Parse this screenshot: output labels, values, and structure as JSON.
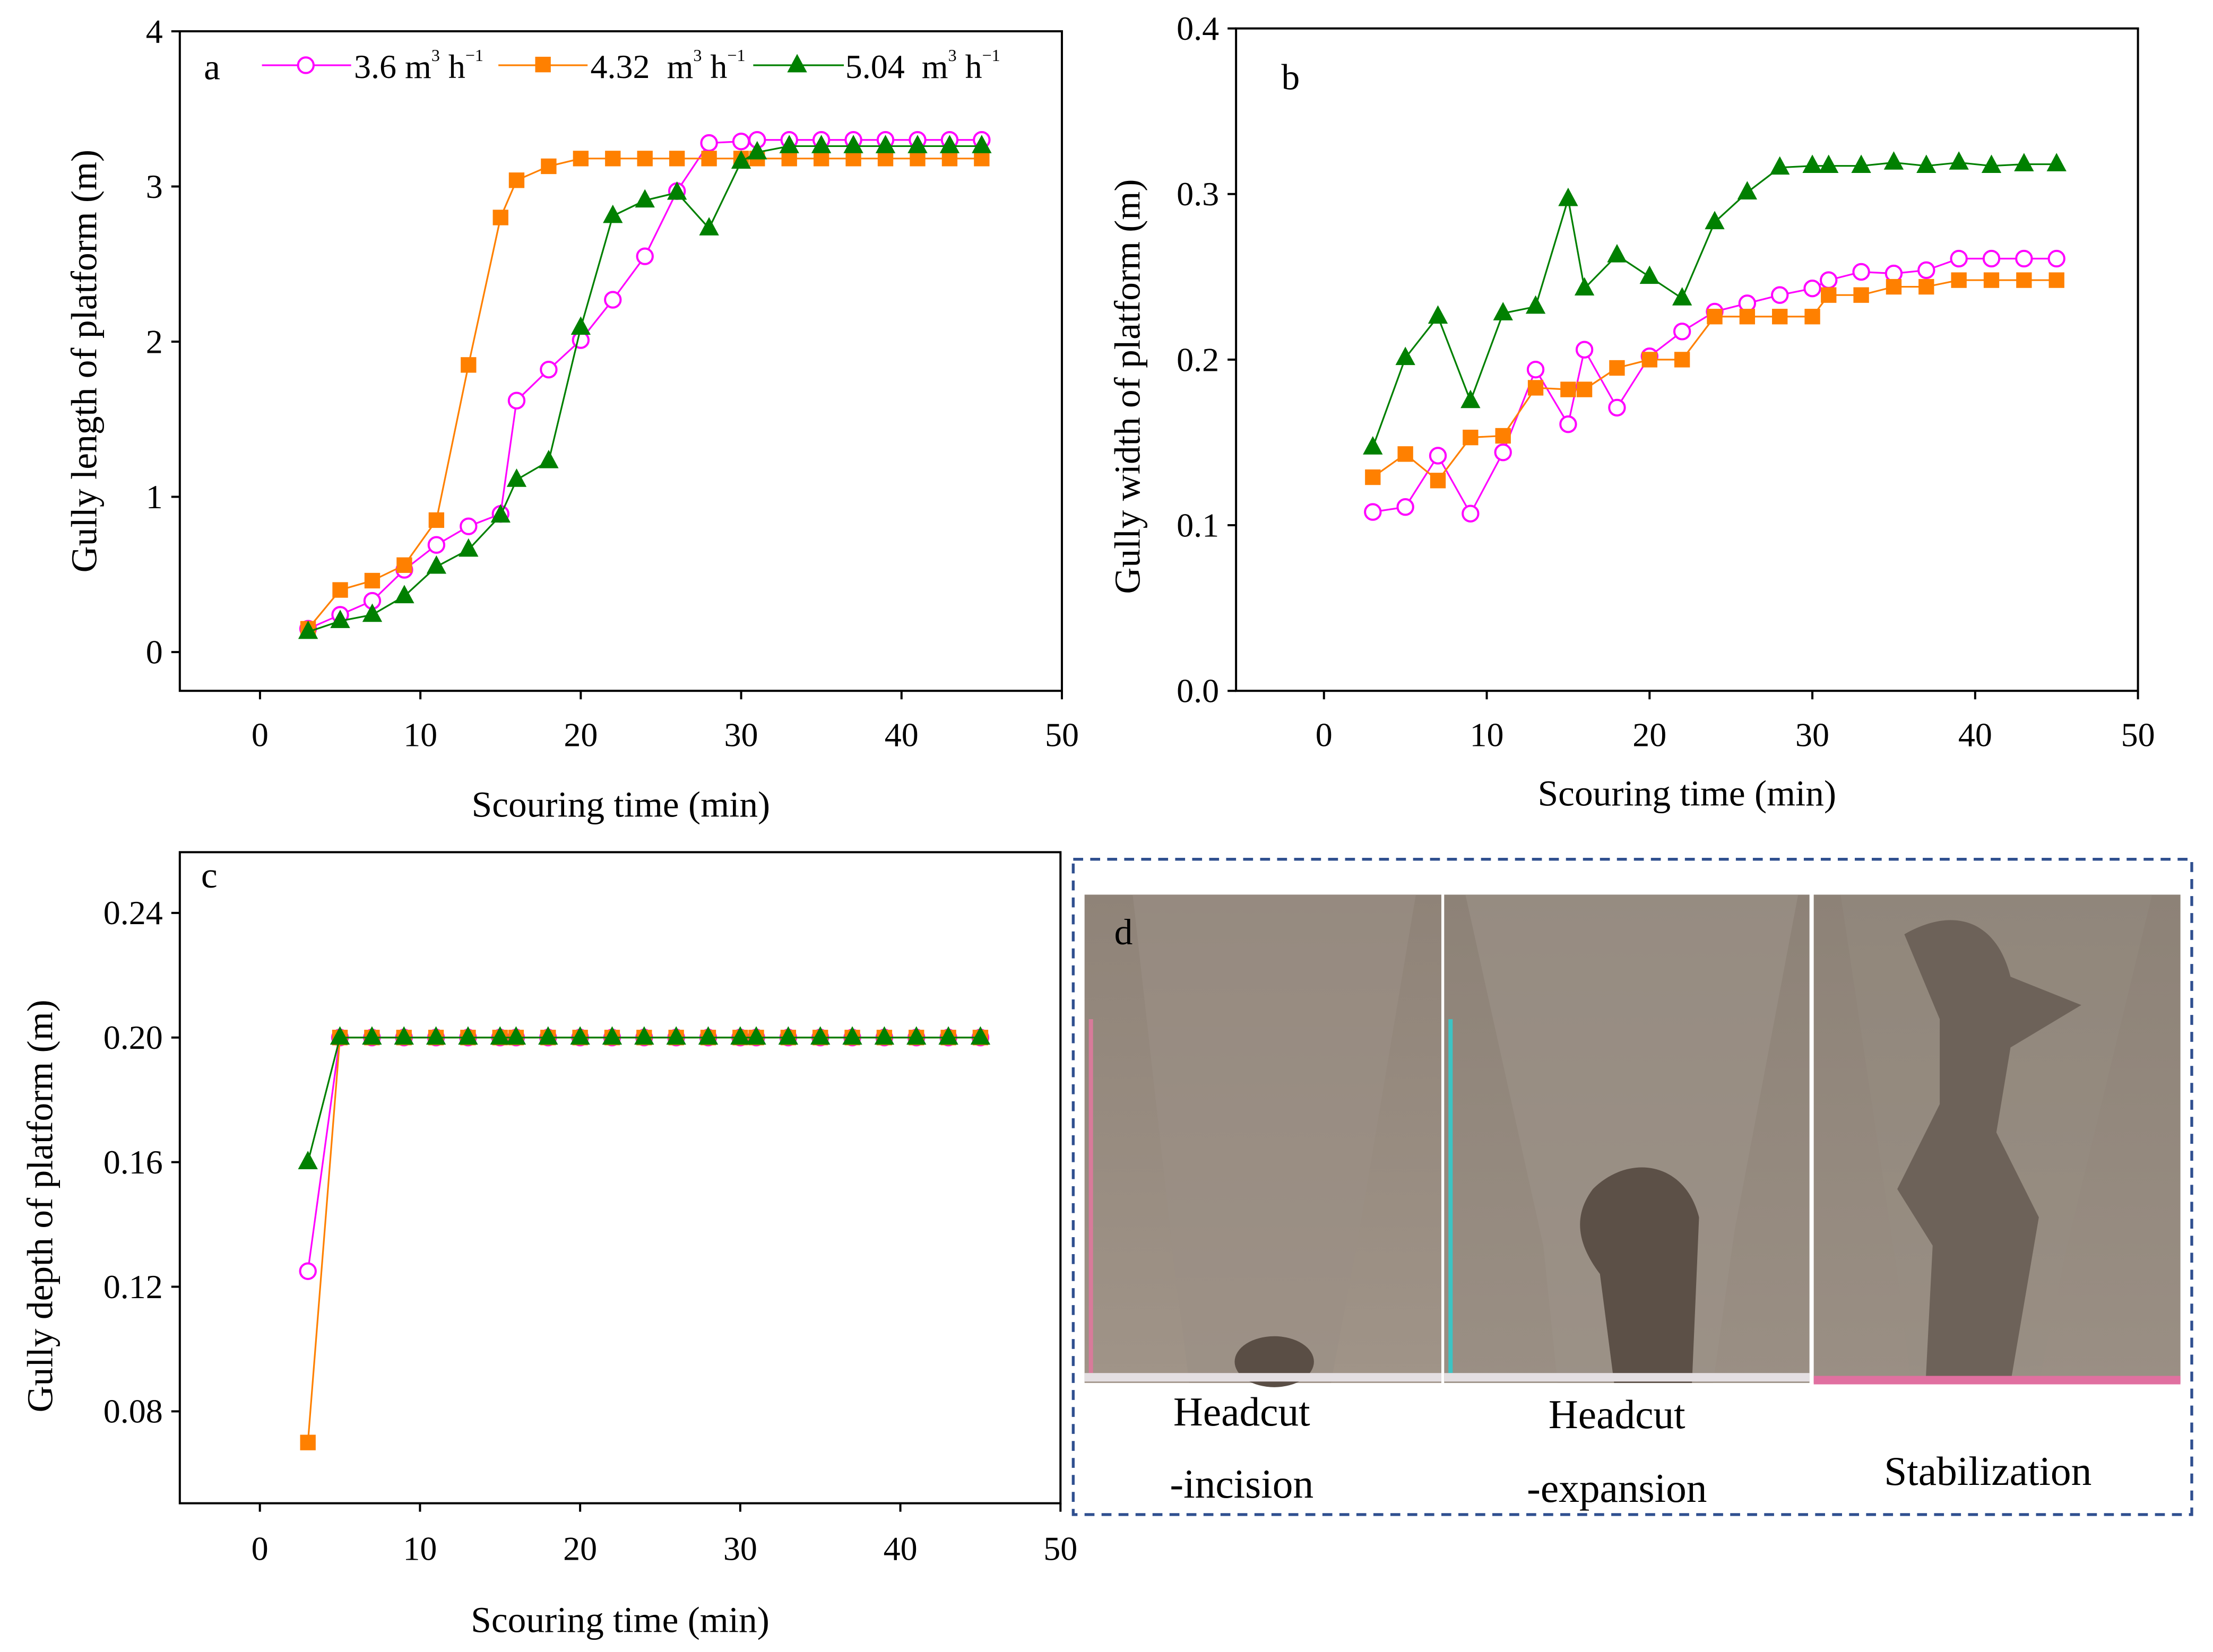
{
  "chart_data": [
    {
      "type": "line",
      "panel": "a",
      "xlabel": "Scouring time (min)",
      "ylabel": "Gully length of platform (m)",
      "xlim": [
        -5,
        50
      ],
      "ylim": [
        -0.25,
        4
      ],
      "xticks": [
        0,
        10,
        20,
        30,
        40,
        50
      ],
      "yticks": [
        0,
        1,
        2,
        3,
        4
      ],
      "ytick_labels": [
        "0",
        "1",
        "2",
        "3",
        "4"
      ],
      "legend_placement": "top",
      "x": [
        3,
        5,
        7,
        9,
        11,
        13,
        15,
        16,
        18,
        20,
        22,
        24,
        26,
        28,
        30,
        31,
        33,
        35,
        37,
        39,
        41,
        43,
        45
      ],
      "series": [
        {
          "name": "3.6 m3 h-1",
          "color": "#ff00ff",
          "marker": "circle",
          "values": [
            0.15,
            0.24,
            0.33,
            0.53,
            0.69,
            0.81,
            0.89,
            1.62,
            1.82,
            2.01,
            2.27,
            2.55,
            2.97,
            3.28,
            3.29,
            3.3,
            3.3,
            3.3,
            3.3,
            3.3,
            3.3,
            3.3,
            3.3
          ]
        },
        {
          "name": "4.32 m3 h-1",
          "color": "#ff8000",
          "marker": "square",
          "values": [
            0.15,
            0.4,
            0.46,
            0.56,
            0.85,
            1.85,
            2.8,
            3.04,
            3.13,
            3.18,
            3.18,
            3.18,
            3.18,
            3.18,
            3.18,
            3.18,
            3.18,
            3.18,
            3.18,
            3.18,
            3.18,
            3.18,
            3.18
          ]
        },
        {
          "name": "5.04 m3 h-1",
          "color": "#008000",
          "marker": "triangle",
          "values": [
            0.13,
            0.2,
            0.24,
            0.36,
            0.55,
            0.66,
            0.88,
            1.11,
            1.23,
            2.09,
            2.81,
            2.91,
            2.96,
            2.73,
            3.16,
            3.22,
            3.26,
            3.26,
            3.26,
            3.26,
            3.26,
            3.26,
            3.26
          ]
        }
      ]
    },
    {
      "type": "line",
      "panel": "b",
      "xlabel": "Scouring time (min)",
      "ylabel": "Gully width of platform (m)",
      "xlim": [
        -5.4,
        50
      ],
      "ylim": [
        0,
        0.4
      ],
      "xticks": [
        0,
        10,
        20,
        30,
        40,
        50
      ],
      "yticks": [
        0,
        0.1,
        0.2,
        0.3,
        0.4
      ],
      "ytick_labels": [
        "0.0",
        "0.1",
        "0.2",
        "0.3",
        "0.4"
      ],
      "x": [
        3,
        5,
        7,
        9,
        11,
        13,
        15,
        16,
        18,
        20,
        22,
        24,
        26,
        28,
        30,
        31,
        33,
        35,
        37,
        39,
        41,
        43,
        45
      ],
      "series": [
        {
          "name": "3.6 m3 h-1",
          "color": "#ff00ff",
          "marker": "circle",
          "values": [
            0.108,
            0.111,
            0.142,
            0.107,
            0.144,
            0.194,
            0.161,
            0.206,
            0.171,
            0.202,
            0.217,
            0.229,
            0.234,
            0.239,
            0.243,
            0.248,
            0.253,
            0.252,
            0.254,
            0.261,
            0.261,
            0.261,
            0.261
          ]
        },
        {
          "name": "4.32 m3 h-1",
          "color": "#ff8000",
          "marker": "square",
          "values": [
            0.129,
            0.143,
            0.127,
            0.153,
            0.154,
            0.183,
            0.182,
            0.182,
            0.195,
            0.2,
            0.2,
            0.226,
            0.226,
            0.226,
            0.226,
            0.239,
            0.239,
            0.244,
            0.244,
            0.248,
            0.248,
            0.248,
            0.248
          ]
        },
        {
          "name": "5.04 m3 h-1",
          "color": "#008000",
          "marker": "triangle",
          "values": [
            0.147,
            0.201,
            0.226,
            0.175,
            0.228,
            0.232,
            0.297,
            0.243,
            0.263,
            0.25,
            0.237,
            0.283,
            0.301,
            0.316,
            0.317,
            0.317,
            0.317,
            0.319,
            0.317,
            0.319,
            0.317,
            0.318,
            0.318
          ]
        }
      ]
    },
    {
      "type": "line",
      "panel": "c",
      "xlabel": "Scouring time (min)",
      "ylabel": "Gully depth of platform (m)",
      "xlim": [
        -5,
        50
      ],
      "ylim": [
        0.0505,
        0.2595
      ],
      "xticks": [
        0,
        10,
        20,
        30,
        40,
        50
      ],
      "yticks": [
        0.08,
        0.12,
        0.16,
        0.2,
        0.24
      ],
      "ytick_labels": [
        "0.08",
        "0.12",
        "0.16",
        "0.20",
        "0.24"
      ],
      "x": [
        3,
        5,
        7,
        9,
        11,
        13,
        15,
        16,
        18,
        20,
        22,
        24,
        26,
        28,
        30,
        31,
        33,
        35,
        37,
        39,
        41,
        43,
        45
      ],
      "series": [
        {
          "name": "3.6 m3 h-1",
          "color": "#ff00ff",
          "marker": "circle",
          "values": [
            0.125,
            0.2,
            0.2,
            0.2,
            0.2,
            0.2,
            0.2,
            0.2,
            0.2,
            0.2,
            0.2,
            0.2,
            0.2,
            0.2,
            0.2,
            0.2,
            0.2,
            0.2,
            0.2,
            0.2,
            0.2,
            0.2,
            0.2
          ]
        },
        {
          "name": "4.32 m3 h-1",
          "color": "#ff8000",
          "marker": "square",
          "values": [
            0.07,
            0.2,
            0.2,
            0.2,
            0.2,
            0.2,
            0.2,
            0.2,
            0.2,
            0.2,
            0.2,
            0.2,
            0.2,
            0.2,
            0.2,
            0.2,
            0.2,
            0.2,
            0.2,
            0.2,
            0.2,
            0.2,
            0.2
          ]
        },
        {
          "name": "5.04 m3 h-1",
          "color": "#008000",
          "marker": "triangle",
          "values": [
            0.16,
            0.2,
            0.2,
            0.2,
            0.2,
            0.2,
            0.2,
            0.2,
            0.2,
            0.2,
            0.2,
            0.2,
            0.2,
            0.2,
            0.2,
            0.2,
            0.2,
            0.2,
            0.2,
            0.2,
            0.2,
            0.2,
            0.2
          ]
        }
      ]
    }
  ],
  "legend": [
    {
      "num": "3.6",
      "unit": "m",
      "exp": "3",
      "unit2": "h",
      "exp2": "−1"
    },
    {
      "num": "4.32",
      "unit": "m",
      "exp": "3",
      "unit2": "h",
      "exp2": "−1"
    },
    {
      "num": "5.04",
      "unit": "m",
      "exp": "3",
      "unit2": "h",
      "exp2": "−1"
    }
  ],
  "panel_labels": {
    "a": "a",
    "b": "b",
    "c": "c",
    "d": "d"
  },
  "photos": {
    "captions": [
      [
        "Headcut",
        "-incision"
      ],
      [
        "Headcut",
        "-expansion"
      ],
      [
        "Stabilization"
      ]
    ]
  }
}
